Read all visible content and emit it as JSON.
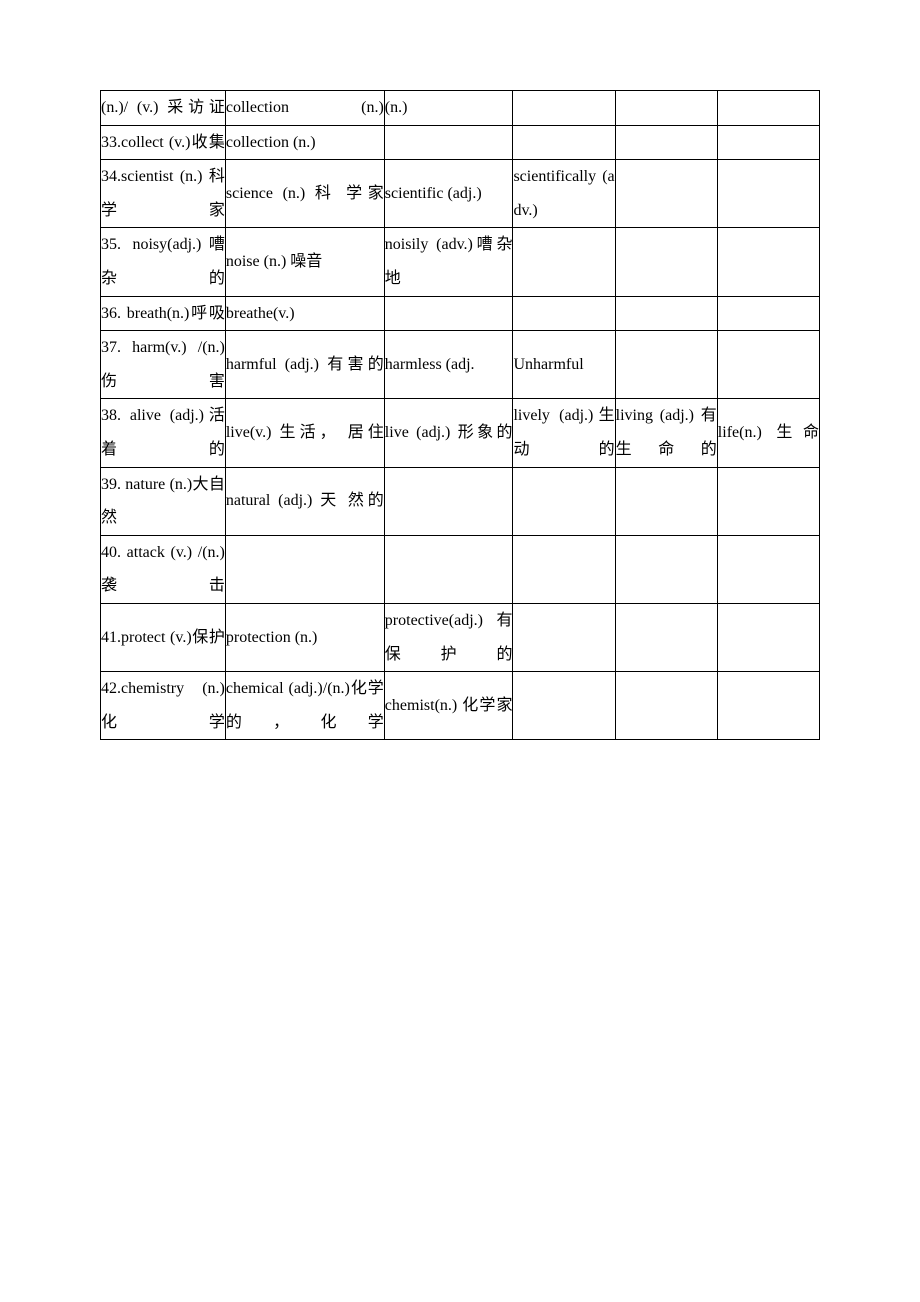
{
  "table": {
    "border_color": "#000000",
    "background_color": "#ffffff",
    "text_color": "#000000",
    "font_size": 16,
    "columns": 6,
    "rows": [
      {
        "cells": [
          "(n.)/ (v.)  采访证",
          "collection (n.)",
          "(n.)",
          "",
          "",
          ""
        ]
      },
      {
        "cells": [
          "33.collect    (v.)收集",
          "collection (n.)",
          "",
          "",
          "",
          ""
        ]
      },
      {
        "cells": [
          "34.scientist (n.)  科学家",
          "science   (n.)  科 学家",
          "scientific (adj.)",
          "scientifically (adv.)",
          "",
          ""
        ]
      },
      {
        "cells": [
          "35.  noisy(adj.)嘈杂的",
          "noise (n.) 噪音",
          "noisily      (adv.)嘈杂地",
          "",
          "",
          ""
        ]
      },
      {
        "cells": [
          "36.       breath(n.)呼吸",
          "breathe(v.)",
          "",
          "",
          "",
          ""
        ]
      },
      {
        "cells": [
          "37.   harm(v.)   /(n.) 伤害",
          "harmful      (adj.) 有害的",
          "harmless (adj.",
          "Unharmful",
          "",
          ""
        ]
      },
      {
        "cells": [
          "38.  alive  (adj.)活着的",
          "live(v.) 生活， 居住",
          "live    (adj.)   形象的",
          "lively (adj.)生动的",
          "living (adj.)   有生命的",
          "life(n.)     生命"
        ]
      },
      {
        "cells": [
          "39.   nature   (n.)大自然",
          "natural  (adj.) 天 然的",
          "",
          "",
          "",
          ""
        ]
      },
      {
        "cells": [
          "40.  attack (v.)  /(n.)袭击",
          "",
          "",
          "",
          "",
          ""
        ]
      },
      {
        "cells": [
          "41.protect   (v.)保护",
          "protection (n.)",
          "protective(adj.)有保护的",
          "",
          "",
          ""
        ]
      },
      {
        "cells": [
          "42.chemistry (n.)  化学",
          "chemical          (adj.)/(n.)化学的，化学",
          "chemist(n.)  化学家",
          "",
          "",
          ""
        ]
      }
    ]
  }
}
